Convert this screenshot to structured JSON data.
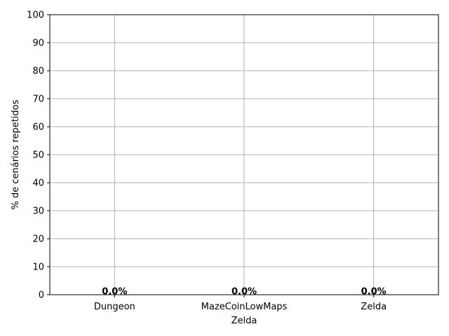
{
  "chart_data": {
    "type": "bar",
    "title": "",
    "xlabel": "Zelda",
    "ylabel": "% de cenários repetidos",
    "categories": [
      "Dungeon",
      "MazeCoinLowMaps",
      "Zelda"
    ],
    "values": [
      0.0,
      0.0,
      0.0
    ],
    "data_labels": [
      "0.0%",
      "0.0%",
      "0.0%"
    ],
    "ylim": [
      0,
      100
    ],
    "yticks": [
      0,
      10,
      20,
      30,
      40,
      50,
      60,
      70,
      80,
      90,
      100
    ],
    "ytick_labels": [
      "0",
      "10",
      "20",
      "30",
      "40",
      "50",
      "60",
      "70",
      "80",
      "90",
      "100"
    ],
    "grid": true,
    "colors": {
      "grid": "#b0b0b0",
      "axis": "#000000",
      "bar": "#1f77b4"
    }
  }
}
